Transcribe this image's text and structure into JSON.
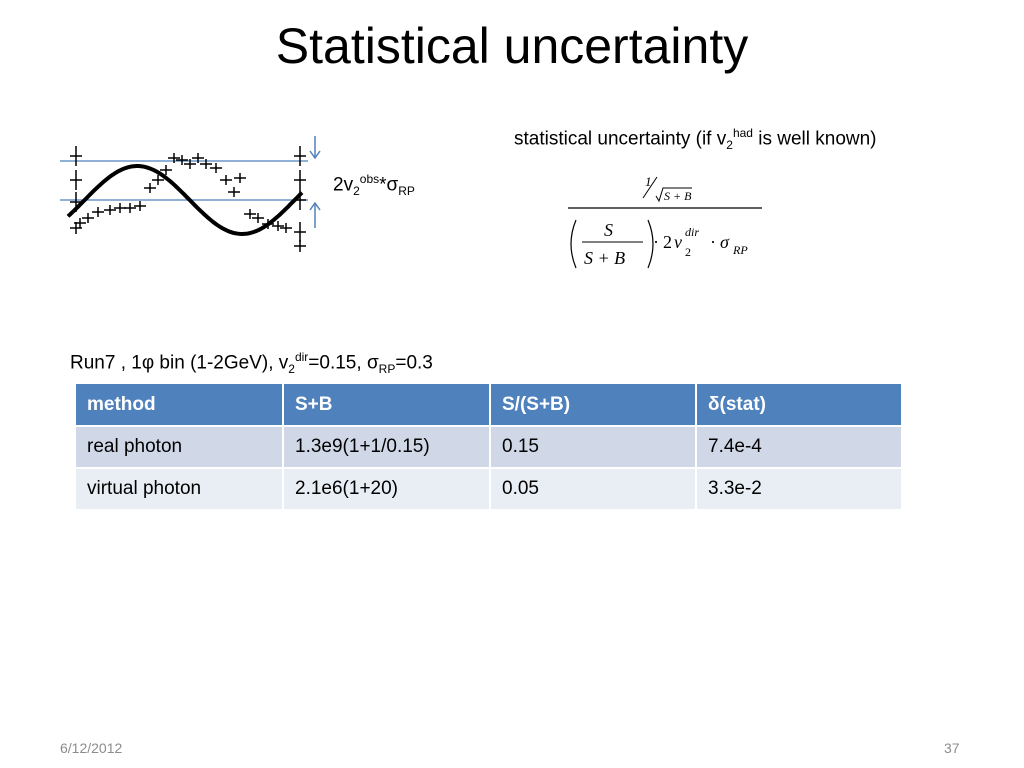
{
  "slide": {
    "title": "Statistical uncertainty",
    "date": "6/12/2012",
    "page": "37"
  },
  "plot_annotation": {
    "prefix": "2v",
    "sub1": "2",
    "sup1": "obs",
    "star": "*",
    "sigma": "σ",
    "sub2": "RP"
  },
  "stat_heading": {
    "prefix": "statistical uncertainty (if v",
    "sub": "2",
    "sup": "had",
    "suffix": " is well known)"
  },
  "formula": {
    "num_top": "1",
    "num_bottom": "S + B",
    "frac_top": "S",
    "frac_bottom": "S + B",
    "dot1": "·",
    "coef": "2",
    "v": "v",
    "v_sup": "dir",
    "v_sub": "2",
    "dot2": "·",
    "sigma": "σ",
    "sigma_sub": "RP"
  },
  "run_line": {
    "part1": "Run7 , 1",
    "phi": "φ",
    "part2": " bin (1-2GeV), v",
    "sub": "2",
    "sup": "dir",
    "part3": "=0.15, ",
    "sigma": "σ",
    "sigma_sub": "RP",
    "part4": "=0.3"
  },
  "table": {
    "headers": [
      "method",
      "S+B",
      "S/(S+B)",
      "(stat)"
    ],
    "delta": "δ",
    "rows": [
      [
        "real photon",
        "1.3e9(1+1/0.15)",
        "0.15",
        "7.4e-4"
      ],
      [
        "virtual photon",
        "2.1e6(1+20)",
        "0.05",
        "3.3e-2"
      ]
    ]
  },
  "colors": {
    "header_bg": "#4f81bd",
    "row1_bg": "#d0d8e8",
    "row2_bg": "#e9edf4",
    "guide_line": "#4f81bd"
  }
}
